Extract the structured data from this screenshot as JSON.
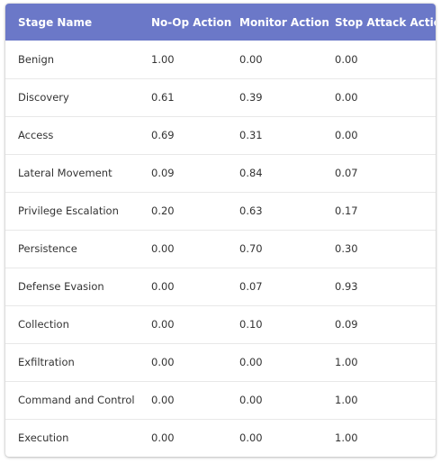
{
  "table": {
    "columns": [
      "Stage Name",
      "No-Op Action",
      "Monitor Action",
      "Stop Attack Action"
    ],
    "rows": [
      [
        "Benign",
        "1.00",
        "0.00",
        "0.00"
      ],
      [
        "Discovery",
        "0.61",
        "0.39",
        "0.00"
      ],
      [
        "Access",
        "0.69",
        "0.31",
        "0.00"
      ],
      [
        "Lateral Movement",
        "0.09",
        "0.84",
        "0.07"
      ],
      [
        "Privilege Escalation",
        "0.20",
        "0.63",
        "0.17"
      ],
      [
        "Persistence",
        "0.00",
        "0.70",
        "0.30"
      ],
      [
        "Defense Evasion",
        "0.00",
        "0.07",
        "0.93"
      ],
      [
        "Collection",
        "0.00",
        "0.10",
        "0.09"
      ],
      [
        "Exfiltration",
        "0.00",
        "0.00",
        "1.00"
      ],
      [
        "Command and Control",
        "0.00",
        "0.00",
        "1.00"
      ],
      [
        "Execution",
        "0.00",
        "0.00",
        "1.00"
      ]
    ]
  },
  "colors": {
    "header_background": "#6b78c8",
    "header_text": "#ffffff",
    "row_divider": "#e8e8e8"
  }
}
